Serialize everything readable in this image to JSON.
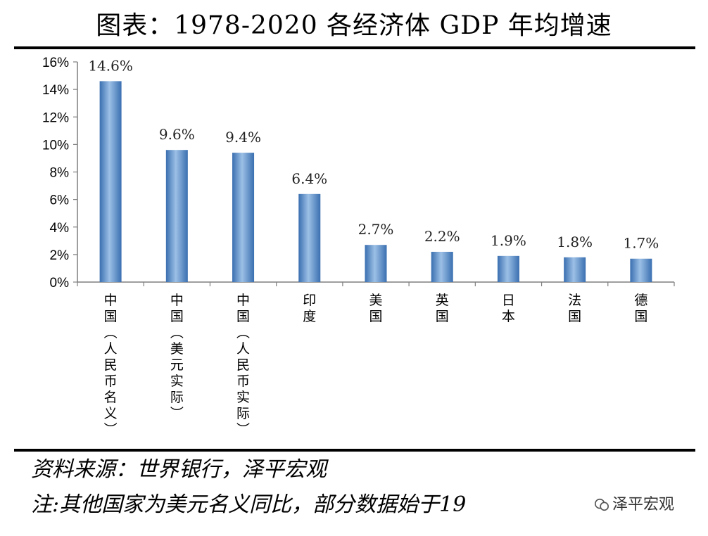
{
  "title": "图表：1978-2020 各经济体 GDP 年均增速",
  "source_line": "资料来源：世界银行，泽平宏观",
  "note_line": "注:其他国家为美元名义同比，部分数据始于19",
  "watermark": "泽平宏观",
  "colors": {
    "bar": "#3a6fb0",
    "bar_light": "#9cc0e6",
    "axis": "#7f7f7f"
  },
  "chart_data": {
    "type": "bar",
    "title": "1978-2020 各经济体 GDP 年均增速",
    "xlabel": "",
    "ylabel": "",
    "ylim": [
      0,
      16
    ],
    "yticks": [
      "0%",
      "2%",
      "4%",
      "6%",
      "8%",
      "10%",
      "12%",
      "14%",
      "16%"
    ],
    "ytick_values": [
      0,
      2,
      4,
      6,
      8,
      10,
      12,
      14,
      16
    ],
    "categories": [
      "中国（人民币名义）",
      "中国（美元实际）",
      "中国（人民币实际）",
      "印度",
      "美国",
      "英国",
      "日本",
      "法国",
      "德国"
    ],
    "values": [
      14.6,
      9.6,
      9.4,
      6.4,
      2.7,
      2.2,
      1.9,
      1.8,
      1.7
    ],
    "value_labels": [
      "14.6%",
      "9.6%",
      "9.4%",
      "6.4%",
      "2.7%",
      "2.2%",
      "1.9%",
      "1.8%",
      "1.7%"
    ],
    "grid": false,
    "legend": "none"
  }
}
